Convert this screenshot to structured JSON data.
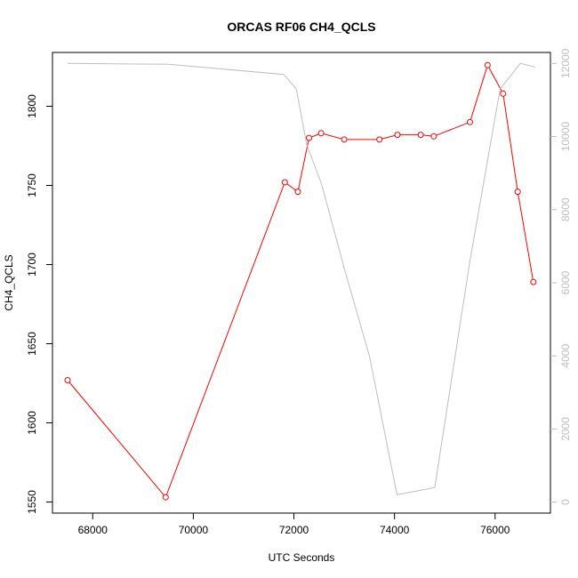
{
  "chart_data": {
    "type": "line",
    "title": "ORCAS RF06 CH4_QCLS",
    "xlabel": "UTC Seconds",
    "ylabel": "CH4_QCLS",
    "xlim": [
      67200,
      77100
    ],
    "ylim": [
      1543,
      1834
    ],
    "y2lim": [
      -300,
      12300
    ],
    "xticks": [
      68000,
      70000,
      72000,
      74000,
      76000
    ],
    "yticks": [
      1550,
      1600,
      1650,
      1700,
      1750,
      1800
    ],
    "y2ticks": [
      0,
      2000,
      4000,
      6000,
      8000,
      10000,
      12000
    ],
    "grid": false,
    "series": [
      {
        "axis": "left",
        "color": "#ff0000",
        "style": "line+open-circle",
        "x": [
          67500,
          69450,
          71820,
          72080,
          72300,
          72540,
          73000,
          73700,
          74060,
          74520,
          74780,
          75500,
          75850,
          76160,
          76450,
          76760
        ],
        "y": [
          1627,
          1553,
          1752,
          1746,
          1780,
          1783,
          1779,
          1779,
          1782,
          1782,
          1781,
          1790,
          1826,
          1808,
          1746,
          1689
        ]
      },
      {
        "axis": "right",
        "color": "#bebebe",
        "style": "line",
        "x": [
          67500,
          69500,
          71800,
          72050,
          72250,
          72550,
          73000,
          73500,
          74050,
          74800,
          75500,
          76100,
          76500,
          76800
        ],
        "y": [
          12000,
          11980,
          11700,
          11300,
          9800,
          8700,
          6400,
          4000,
          200,
          400,
          6600,
          11300,
          12000,
          11900
        ]
      }
    ]
  }
}
